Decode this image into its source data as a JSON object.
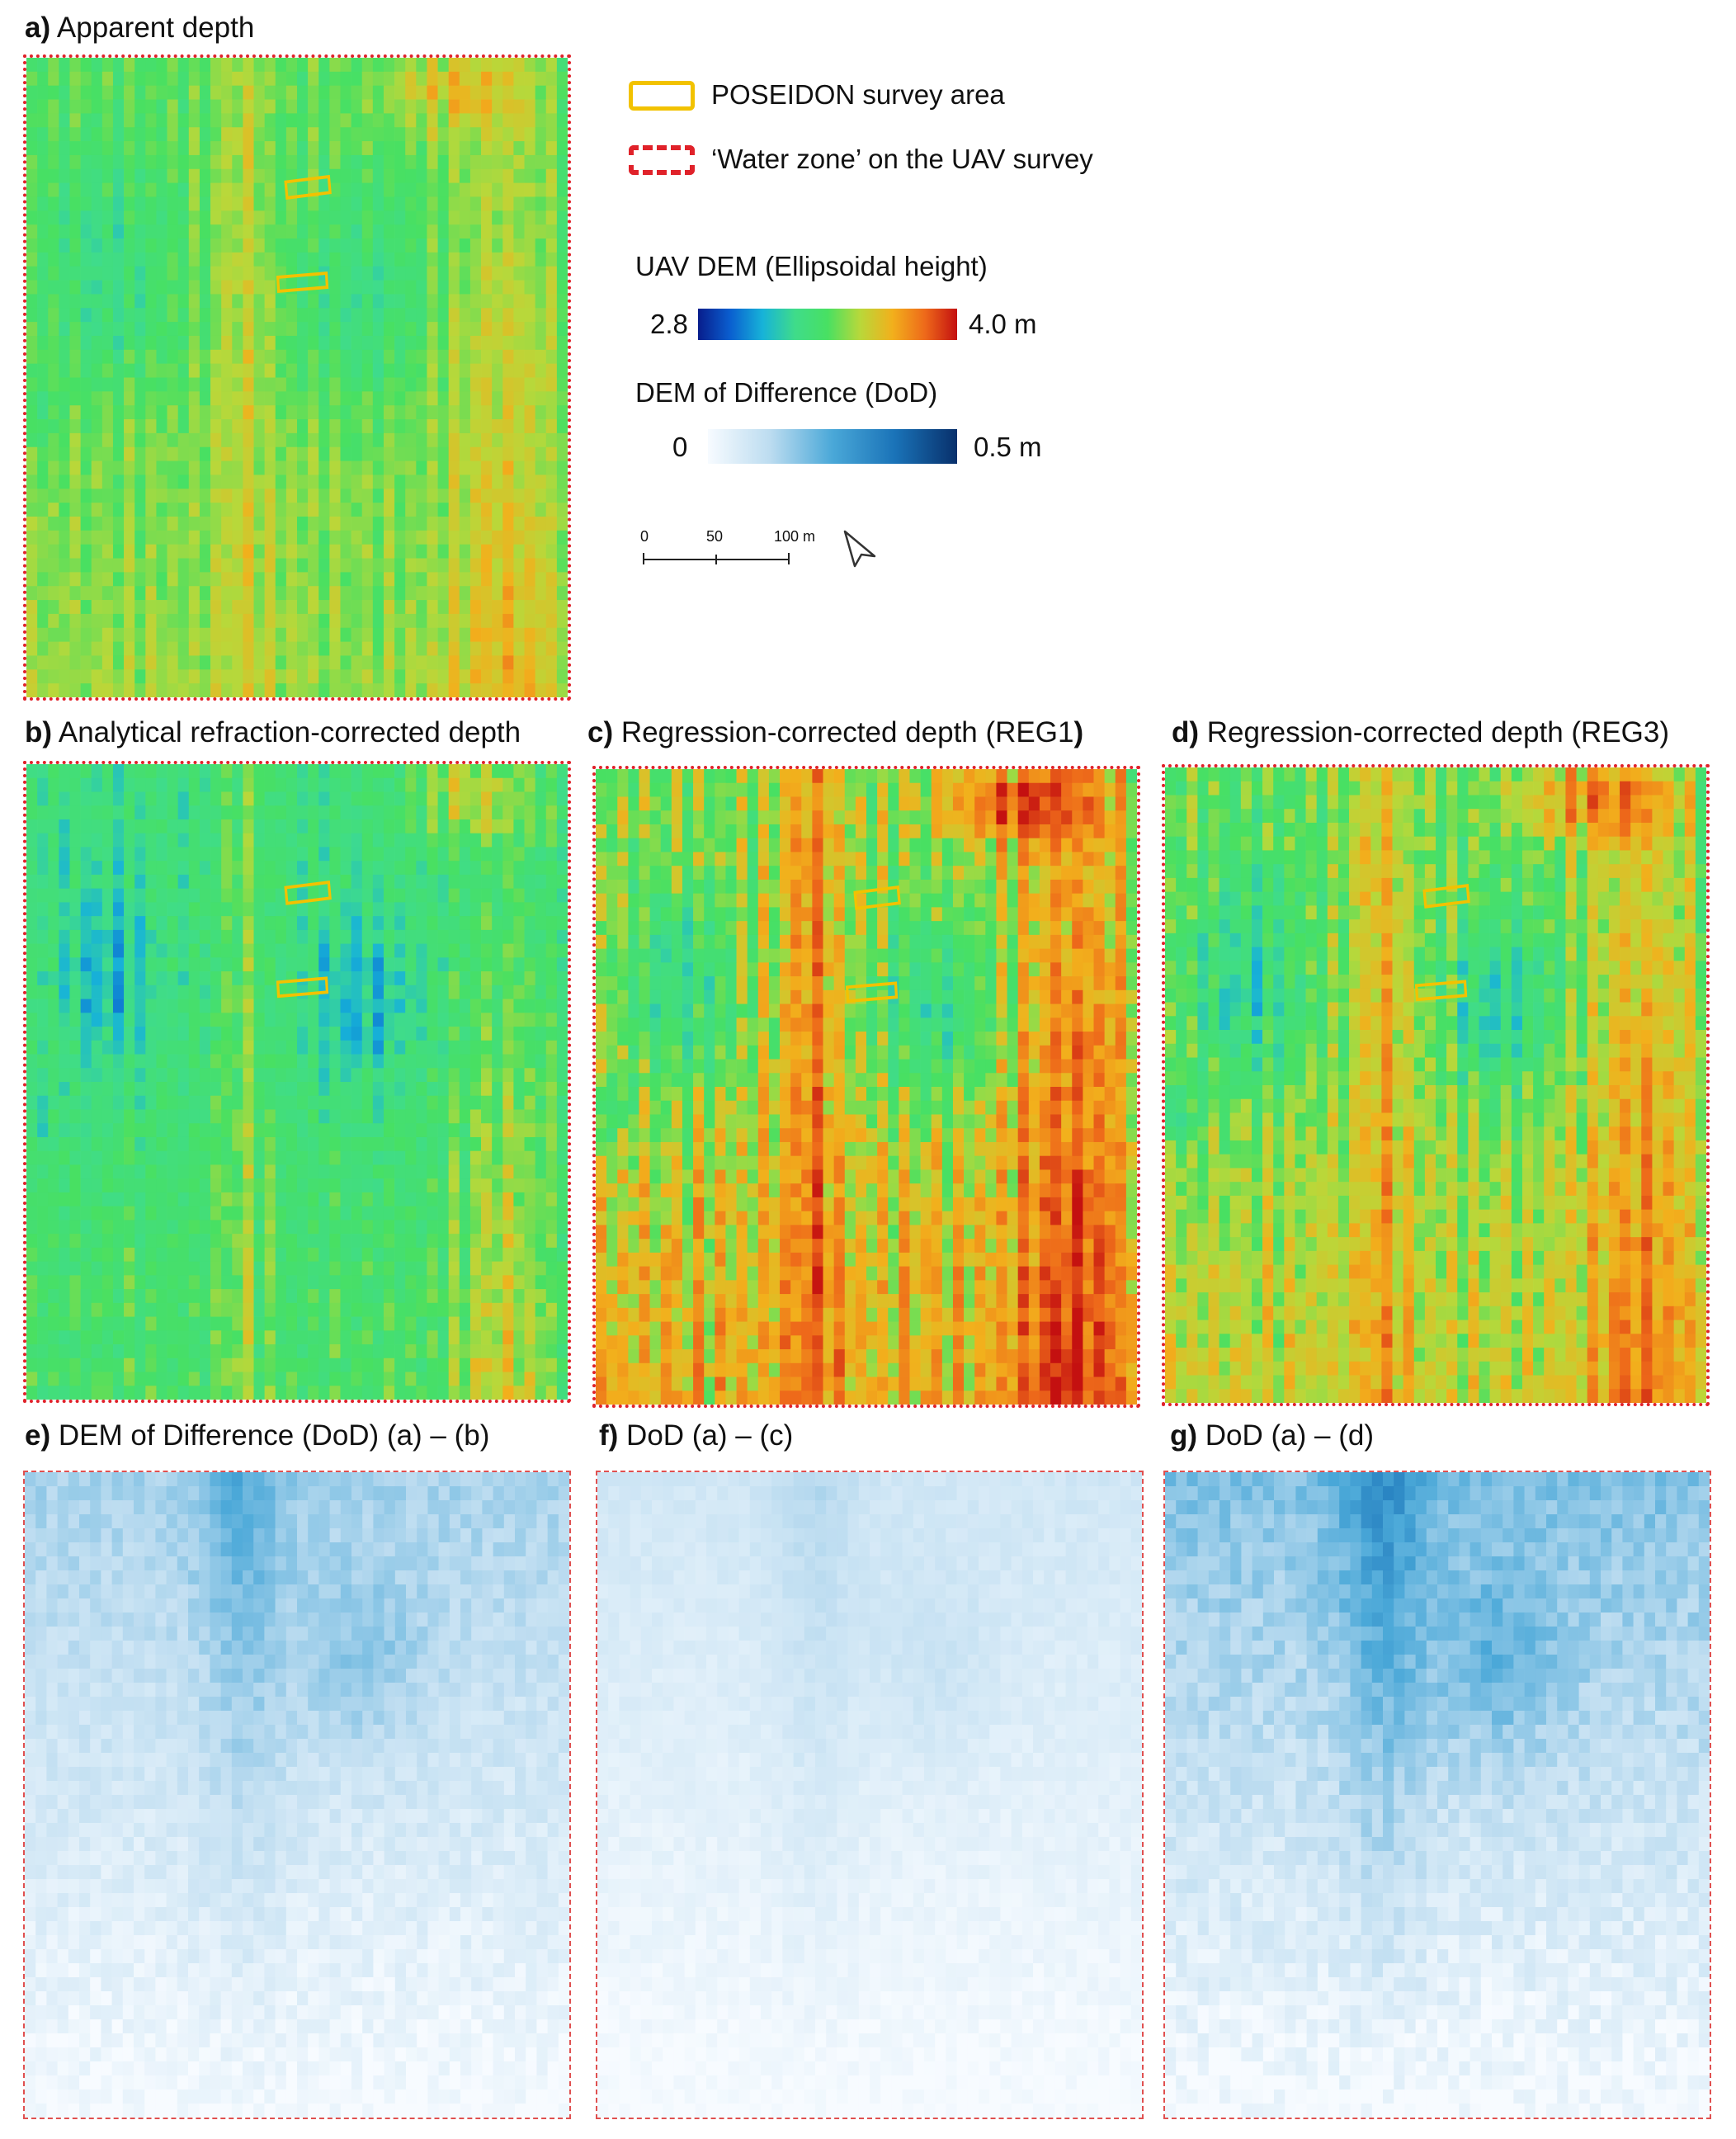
{
  "panels": {
    "a": {
      "letter": "a)",
      "title": "Apparent depth",
      "kind": "dem",
      "bias": 0.0
    },
    "b": {
      "letter": "b)",
      "title": "Analytical refraction-corrected depth",
      "kind": "dem",
      "bias": -0.1
    },
    "c": {
      "letter": "c)",
      "title": "Regression-corrected depth (REG1",
      "title_close": ")",
      "kind": "dem",
      "bias": 0.08
    },
    "d": {
      "letter": "d)",
      "title": "Regression-corrected depth (REG3)",
      "kind": "dem",
      "bias": 0.02
    },
    "e": {
      "letter": "e)",
      "title": "DEM of Difference (DoD) (a) – (b)",
      "kind": "dod",
      "strength": 0.55
    },
    "f": {
      "letter": "f)",
      "title": "DoD  (a) – (c)",
      "kind": "dod",
      "strength": 0.3
    },
    "g": {
      "letter": "g)",
      "title": "DoD  (a) – (d)",
      "kind": "dod",
      "strength": 0.7
    }
  },
  "legend": {
    "poseidon": "POSEIDON survey area",
    "water_zone": "‘Water zone’ on the UAV survey",
    "dem_title": "UAV DEM (Ellipsoidal height)",
    "dem_min": "2.8",
    "dem_max": "4.0 m",
    "dod_title": "DEM of Difference (DoD)",
    "dod_min": "0",
    "dod_max": "0.5 m",
    "scale_ticks": [
      "0",
      "50",
      "100 m"
    ]
  },
  "colors": {
    "dem_ramp": [
      "#081d8c",
      "#0a5fd0",
      "#17b3d8",
      "#3fdc8a",
      "#48e062",
      "#b8d83a",
      "#f2b01c",
      "#ee6a1a",
      "#c41010"
    ],
    "dod_ramp": [
      "#f7fbff",
      "#bcdcf0",
      "#4aa8d8",
      "#1a73b8",
      "#08306b"
    ],
    "poseidon_outline": "#f2c200",
    "water_zone_outline": "#e0222a"
  }
}
